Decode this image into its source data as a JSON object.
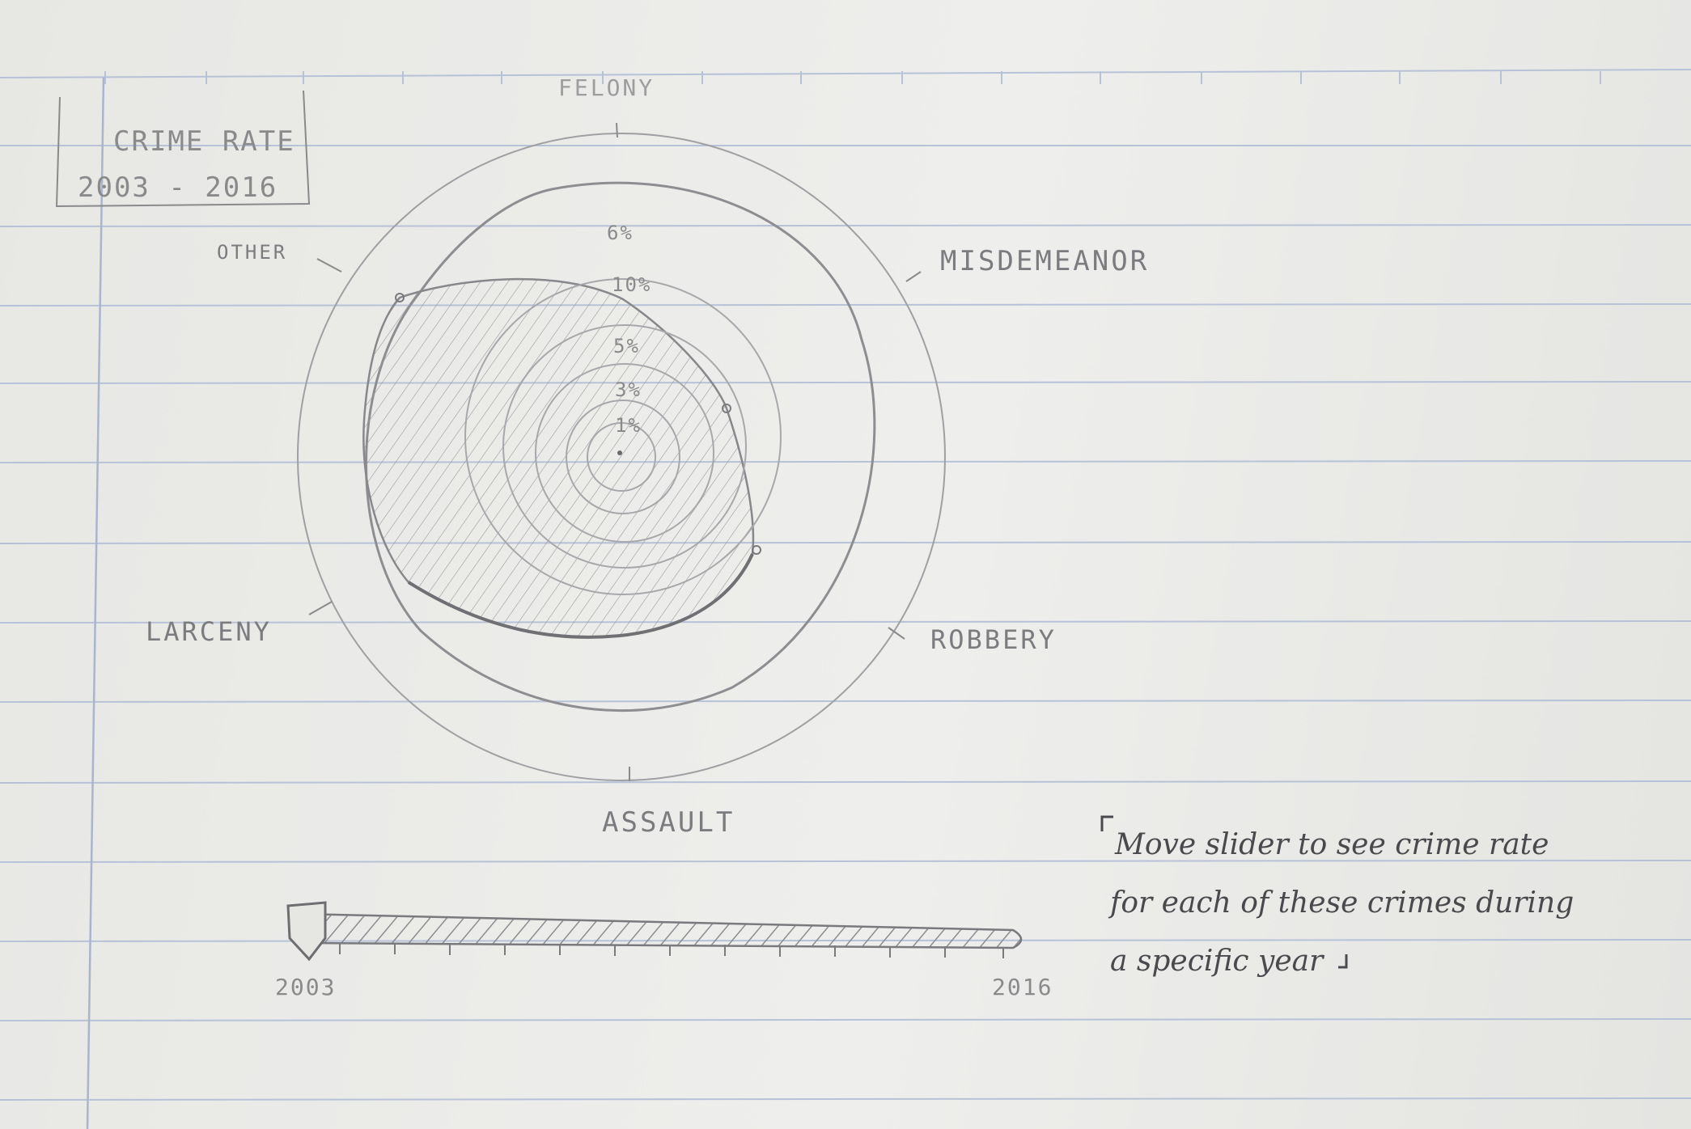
{
  "title": {
    "line1": "CRIME RATE",
    "line2": "2003 - 2016"
  },
  "axes": {
    "top": "FELONY",
    "misdemeanor": "MISDEMEANOR",
    "robbery": "ROBBERY",
    "assault": "ASSAULT",
    "larceny": "LARCENY",
    "other": "OTHER"
  },
  "ring_labels": [
    "6%",
    "10%",
    "5%",
    "3%",
    "1%"
  ],
  "slider": {
    "start_label": "2003",
    "end_label": "2016",
    "value": 2003
  },
  "note": {
    "line1": "Move slider to see crime rate",
    "line2": "for each of these crimes during",
    "line3": "a specific year"
  },
  "colors": {
    "ink": "#4a4a4e",
    "pencil": "#8a8a8c",
    "rule_line": "#b8c2d6",
    "margin_line": "#aab4cc"
  }
}
